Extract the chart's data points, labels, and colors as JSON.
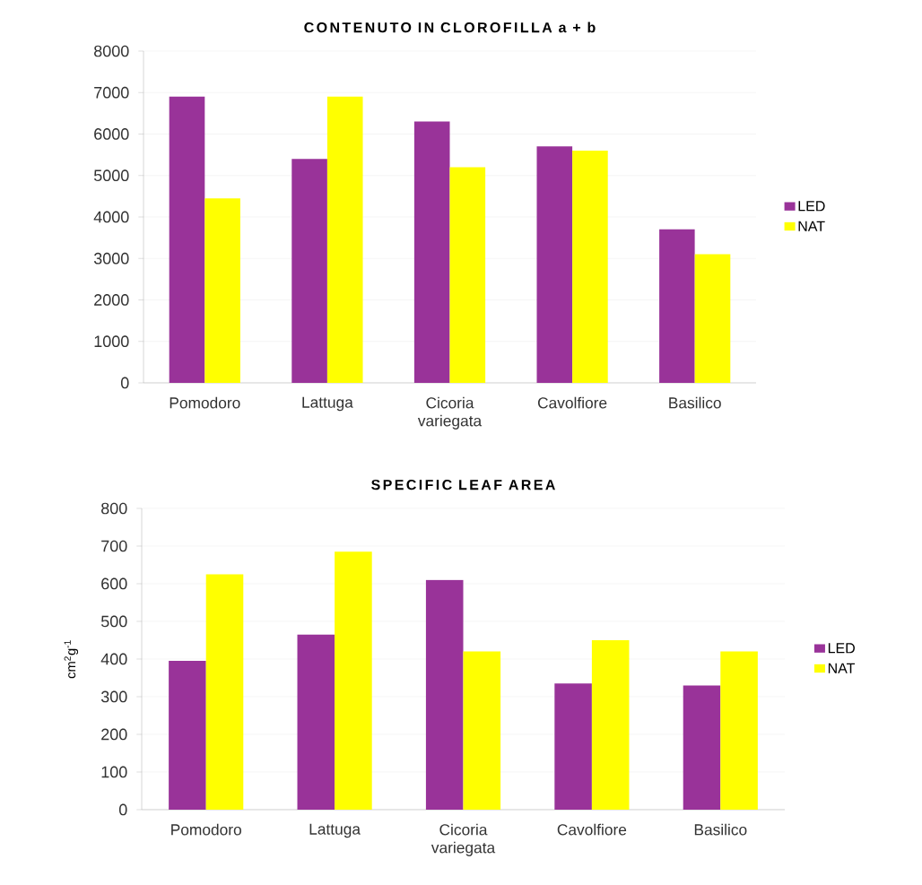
{
  "chart_data": [
    {
      "type": "bar",
      "title": "CONTENUTO IN CLOROFILLA a + b",
      "categories": [
        "Pomodoro",
        "Lattuga",
        "Cicoria variegata",
        "Cavolfiore",
        "Basilico"
      ],
      "series": [
        {
          "name": "LED",
          "color": "#993399",
          "values": [
            6900,
            5400,
            6300,
            5700,
            3700
          ]
        },
        {
          "name": "NAT",
          "color": "#ffff00",
          "values": [
            4450,
            6900,
            5200,
            5600,
            3100
          ]
        }
      ],
      "ylim": [
        0,
        8000
      ],
      "yticks": [
        0,
        1000,
        2000,
        3000,
        4000,
        5000,
        6000,
        7000,
        8000
      ],
      "grid": "y",
      "legend": "right"
    },
    {
      "type": "bar",
      "title": "SPECIFIC LEAF AREA",
      "ylabel": "cm$^{2}$g$^{-1}$",
      "categories": [
        "Pomodoro",
        "Lattuga",
        "Cicoria variegata",
        "Cavolfiore",
        "Basilico"
      ],
      "series": [
        {
          "name": "LED",
          "color": "#993399",
          "values": [
            395,
            465,
            610,
            335,
            330
          ]
        },
        {
          "name": "NAT",
          "color": "#ffff00",
          "values": [
            625,
            685,
            420,
            450,
            420
          ]
        }
      ],
      "ylim": [
        0,
        800
      ],
      "yticks": [
        0,
        100,
        200,
        300,
        400,
        500,
        600,
        700,
        800
      ],
      "grid": "y",
      "legend": "right"
    }
  ]
}
